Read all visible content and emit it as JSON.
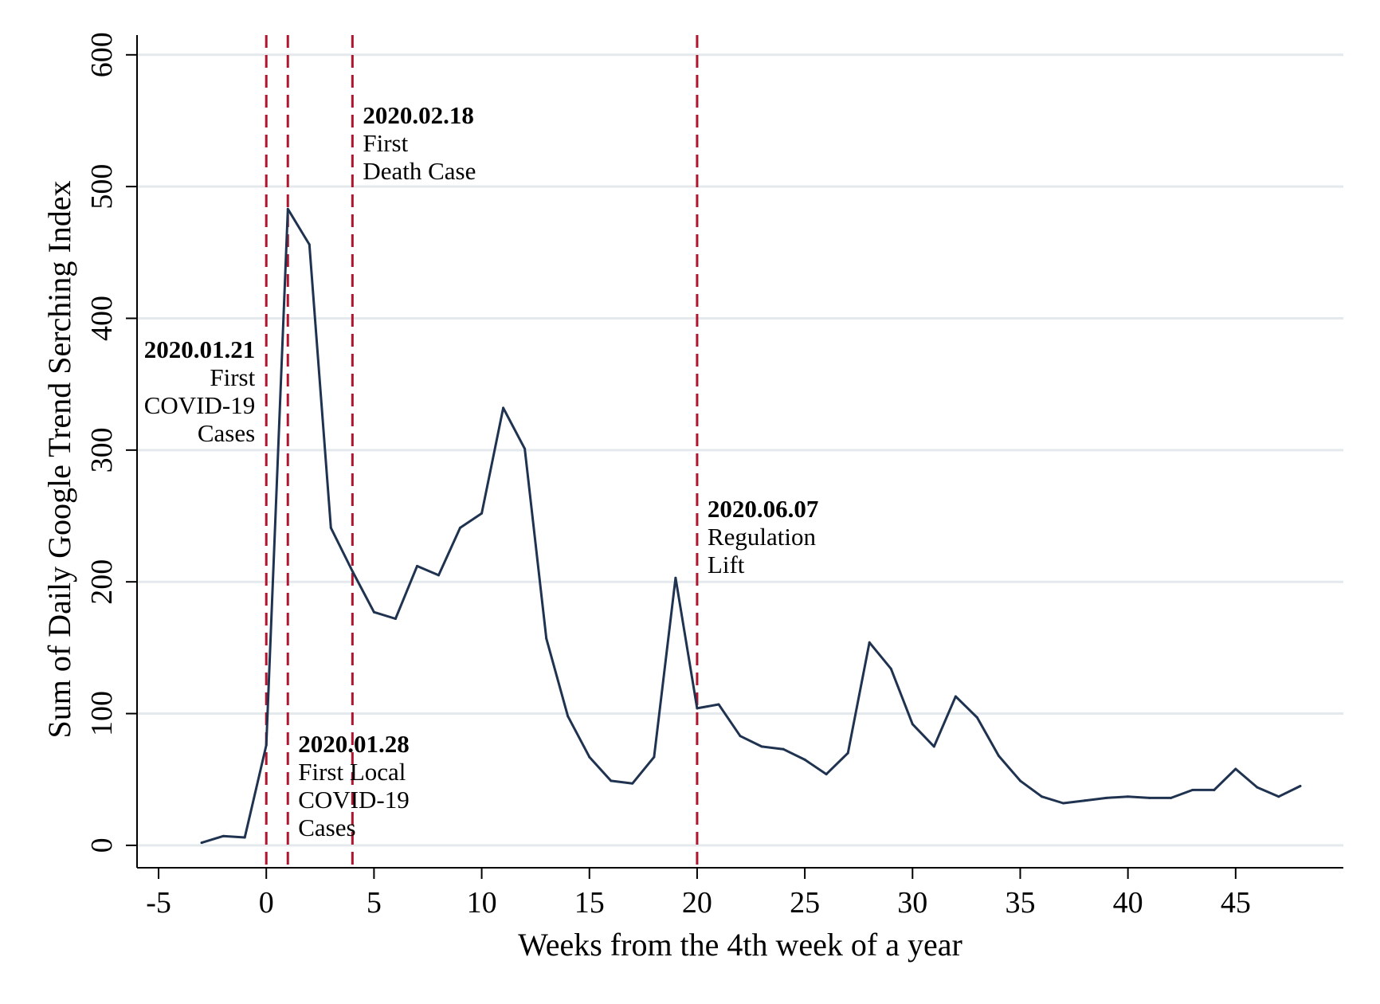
{
  "chart_data": {
    "type": "line",
    "xlabel": "Weeks from the 4th week of a year",
    "ylabel": "Sum of Daily Google Trend Serching Index",
    "xlim": [
      -6,
      50
    ],
    "ylim": [
      -17,
      615
    ],
    "x_ticks": [
      -5,
      0,
      5,
      10,
      15,
      20,
      25,
      30,
      35,
      40,
      45
    ],
    "y_ticks": [
      0,
      100,
      200,
      300,
      400,
      500,
      600
    ],
    "grid": "horizontal",
    "colors": {
      "line": "#1f3350",
      "vline": "#b0142f",
      "grid": "#e3e9ec"
    },
    "series": [
      {
        "x": [
          -3,
          -2,
          -1,
          0,
          1,
          2,
          3,
          4,
          5,
          6,
          7,
          8,
          9,
          10,
          11,
          12,
          13,
          14,
          15,
          16,
          17,
          18,
          19,
          20,
          21,
          22,
          23,
          24,
          25,
          26,
          27,
          28,
          29,
          30,
          31,
          32,
          33,
          34,
          35,
          36,
          37,
          38,
          39,
          40,
          41,
          42,
          43,
          44,
          45,
          46,
          47,
          48
        ],
        "y": [
          2,
          7,
          6,
          76,
          483,
          456,
          241,
          208,
          177,
          172,
          212,
          205,
          241,
          252,
          332,
          301,
          157,
          98,
          67,
          49,
          47,
          67,
          203,
          104,
          107,
          83,
          75,
          73,
          65,
          54,
          70,
          154,
          134,
          92,
          75,
          113,
          97,
          68,
          49,
          37,
          32,
          34,
          36,
          37,
          36,
          36,
          42,
          42,
          58,
          44,
          37,
          45
        ]
      }
    ],
    "vlines": [
      0,
      1,
      4,
      20
    ],
    "annotations": [
      {
        "x": 0,
        "align": "right",
        "date": "2020.01.21",
        "lines": [
          "First",
          "COVID-19",
          "Cases"
        ]
      },
      {
        "x": 1,
        "align": "left",
        "date": "2020.01.28",
        "lines": [
          "First Local",
          "COVID-19",
          "Cases"
        ]
      },
      {
        "x": 4,
        "align": "left",
        "date": "2020.02.18",
        "lines": [
          "First",
          "Death Case"
        ]
      },
      {
        "x": 20,
        "align": "left",
        "date": "2020.06.07",
        "lines": [
          "Regulation",
          "Lift"
        ]
      }
    ]
  }
}
